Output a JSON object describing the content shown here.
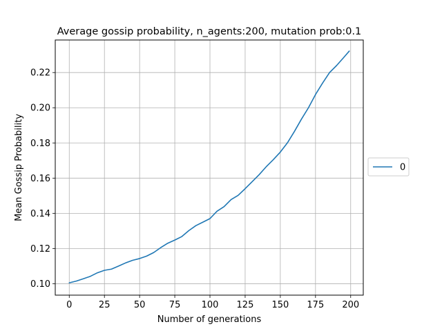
{
  "chart_data": {
    "type": "line",
    "title": "Average gossip probability, n_agents:200, mutation prob:0.1",
    "xlabel": "Number of generations",
    "ylabel": "Mean Gossip Probability",
    "xlim": [
      -9.95,
      208.95
    ],
    "ylim": [
      0.0935,
      0.2385
    ],
    "xticks": [
      0,
      25,
      50,
      75,
      100,
      125,
      150,
      175,
      200
    ],
    "yticks": [
      0.1,
      0.12,
      0.14,
      0.16,
      0.18,
      0.2,
      0.22
    ],
    "xtick_labels": [
      "0",
      "25",
      "50",
      "75",
      "100",
      "125",
      "150",
      "175",
      "200"
    ],
    "ytick_labels": [
      "0.10",
      "0.12",
      "0.14",
      "0.16",
      "0.18",
      "0.20",
      "0.22"
    ],
    "grid": true,
    "legend_position": "center-right-outside",
    "series": [
      {
        "name": "0",
        "color": "#1f77b4",
        "x": [
          0,
          5,
          10,
          15,
          20,
          25,
          30,
          35,
          40,
          45,
          50,
          55,
          60,
          65,
          70,
          75,
          80,
          85,
          90,
          95,
          100,
          105,
          110,
          115,
          120,
          125,
          130,
          135,
          140,
          145,
          150,
          155,
          160,
          165,
          170,
          175,
          180,
          185,
          190,
          195,
          199
        ],
        "values": [
          0.1005,
          0.1015,
          0.1028,
          0.1042,
          0.1062,
          0.1076,
          0.1083,
          0.11,
          0.1118,
          0.1133,
          0.1143,
          0.1157,
          0.1177,
          0.1205,
          0.123,
          0.1248,
          0.1268,
          0.1302,
          0.133,
          0.135,
          0.137,
          0.1412,
          0.1438,
          0.1478,
          0.1502,
          0.154,
          0.158,
          0.162,
          0.1665,
          0.1705,
          0.1748,
          0.18,
          0.1865,
          0.1935,
          0.2,
          0.2075,
          0.214,
          0.22,
          0.224,
          0.2285,
          0.2322
        ]
      }
    ]
  }
}
